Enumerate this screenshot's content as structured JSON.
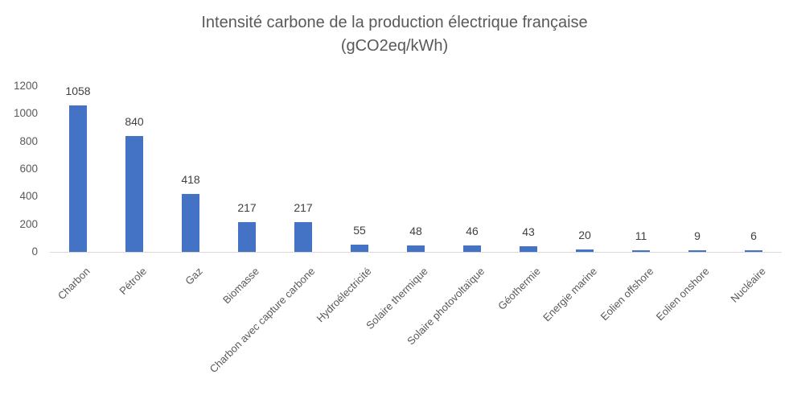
{
  "chart_data": {
    "type": "bar",
    "title": "Intensité carbone de la production électrique française (gCO2eq/kWh)",
    "title_line1": "Intensité carbone de la production électrique française",
    "title_line2": "(gCO2eq/kWh)",
    "categories": [
      "Charbon",
      "Pétrole",
      "Gaz",
      "Biomasse",
      "Charbon avec capture carbone",
      "Hydroélectricité",
      "Solaire thermique",
      "Solaire photovoltaïque",
      "Géothermie",
      "Energie marine",
      "Eolien offshore",
      "Eolien onshore",
      "Nucléaire"
    ],
    "values": [
      1058,
      840,
      418,
      217,
      217,
      55,
      48,
      46,
      43,
      20,
      11,
      9,
      6
    ],
    "data_labels": [
      "1058",
      "840",
      "418",
      "217",
      "217",
      "55",
      "48",
      "46",
      "43",
      "20",
      "11",
      "9",
      "6"
    ],
    "xlabel": "",
    "ylabel": "",
    "ylim": [
      0,
      1200
    ],
    "yticks": [
      "1200",
      "1000",
      "800",
      "600",
      "400",
      "200",
      "0"
    ],
    "ytick_values": [
      1200,
      1000,
      800,
      600,
      400,
      200,
      0
    ],
    "grid": false,
    "legend": false,
    "show_data_labels": true
  },
  "colors": {
    "bar": "#4472C4",
    "title_text": "#595959",
    "axis_text": "#595959",
    "data_label_text": "#404040",
    "axis_line": "#D9D9D9",
    "background": "#FFFFFF"
  }
}
